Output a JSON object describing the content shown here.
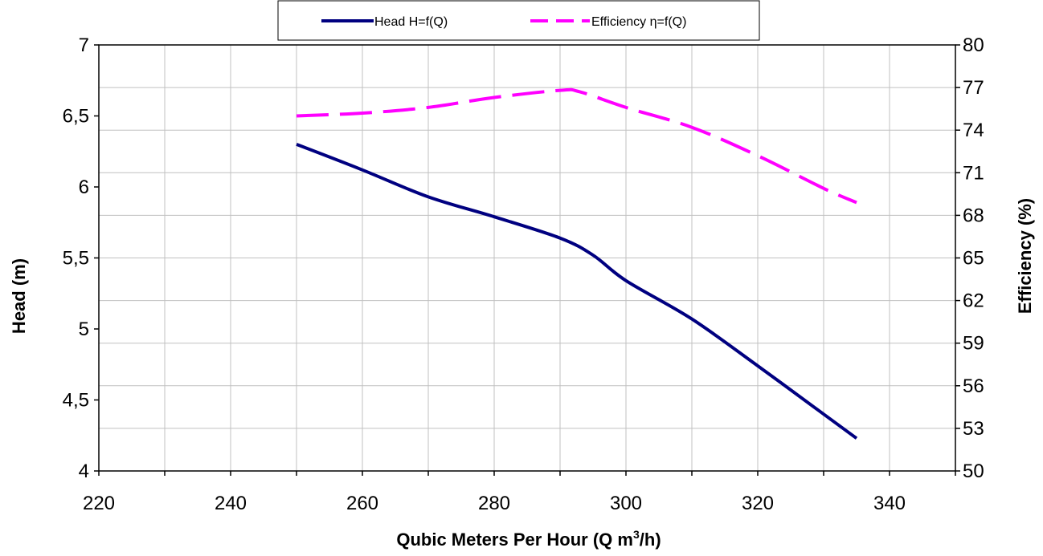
{
  "chart_data": {
    "type": "line",
    "title": "",
    "xlabel": "Qubic Meters Per Hour (Q m³/h)",
    "xlabel_main": "Qubic Meters Per Hour (Q m",
    "xlabel_sup": "3",
    "xlabel_tail": "/h)",
    "ylabel_left": "Head (m)",
    "ylabel_right": "Efficiency (%)",
    "xlim": [
      220,
      350
    ],
    "xticks": [
      220,
      240,
      260,
      280,
      300,
      320,
      340
    ],
    "ylim_left": [
      4,
      7
    ],
    "yticks_left": [
      "4",
      "4,5",
      "5",
      "5,5",
      "6",
      "6,5",
      "7"
    ],
    "ylim_right": [
      50,
      80
    ],
    "yticks_right": [
      "50",
      "53",
      "56",
      "59",
      "62",
      "65",
      "68",
      "71",
      "74",
      "77",
      "80"
    ],
    "grid": true,
    "legend_position": "top",
    "series": [
      {
        "name": "Head H=f(Q)",
        "axis": "left",
        "color": "#000080",
        "style": "solid",
        "x": [
          250,
          260,
          270,
          280,
          290,
          295,
          300,
          310,
          320,
          330,
          335
        ],
        "values": [
          6.3,
          6.12,
          5.93,
          5.79,
          5.64,
          5.52,
          5.34,
          5.07,
          4.74,
          4.4,
          4.23
        ]
      },
      {
        "name": "Efficiency η=f(Q)",
        "axis": "right",
        "color": "#ff00ff",
        "style": "dashed",
        "x": [
          250,
          260,
          270,
          280,
          290,
          293,
          300,
          310,
          320,
          330,
          335
        ],
        "values": [
          75.0,
          75.2,
          75.6,
          76.3,
          76.8,
          76.7,
          75.6,
          74.2,
          72.2,
          69.9,
          68.9
        ]
      }
    ]
  }
}
